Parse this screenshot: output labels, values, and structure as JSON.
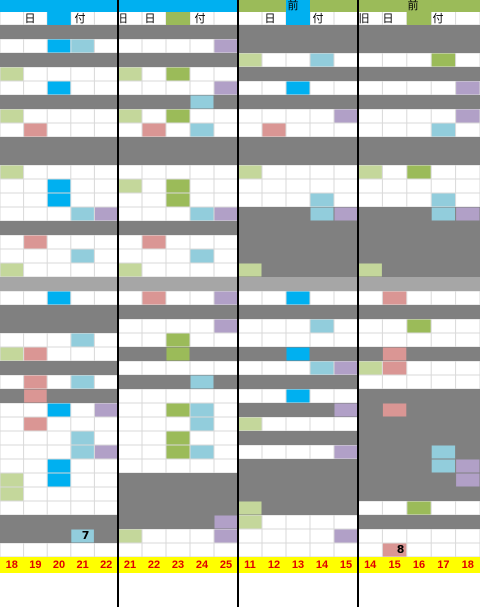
{
  "blocks": [
    {
      "header": [
        "日",
        "付"
      ],
      "days": [
        18,
        19,
        20,
        21,
        22
      ]
    },
    {
      "header": [
        "旧",
        "日",
        "付"
      ],
      "days": [
        21,
        22,
        23,
        24,
        25
      ]
    },
    {
      "title": "前",
      "header": [
        "日",
        "付"
      ],
      "days": [
        11,
        12,
        13,
        14,
        15
      ]
    },
    {
      "title": "前",
      "header": [
        "旧",
        "日",
        "付"
      ],
      "days": [
        14,
        15,
        16,
        17,
        18
      ]
    }
  ],
  "cells": [
    7,
    8
  ]
}
